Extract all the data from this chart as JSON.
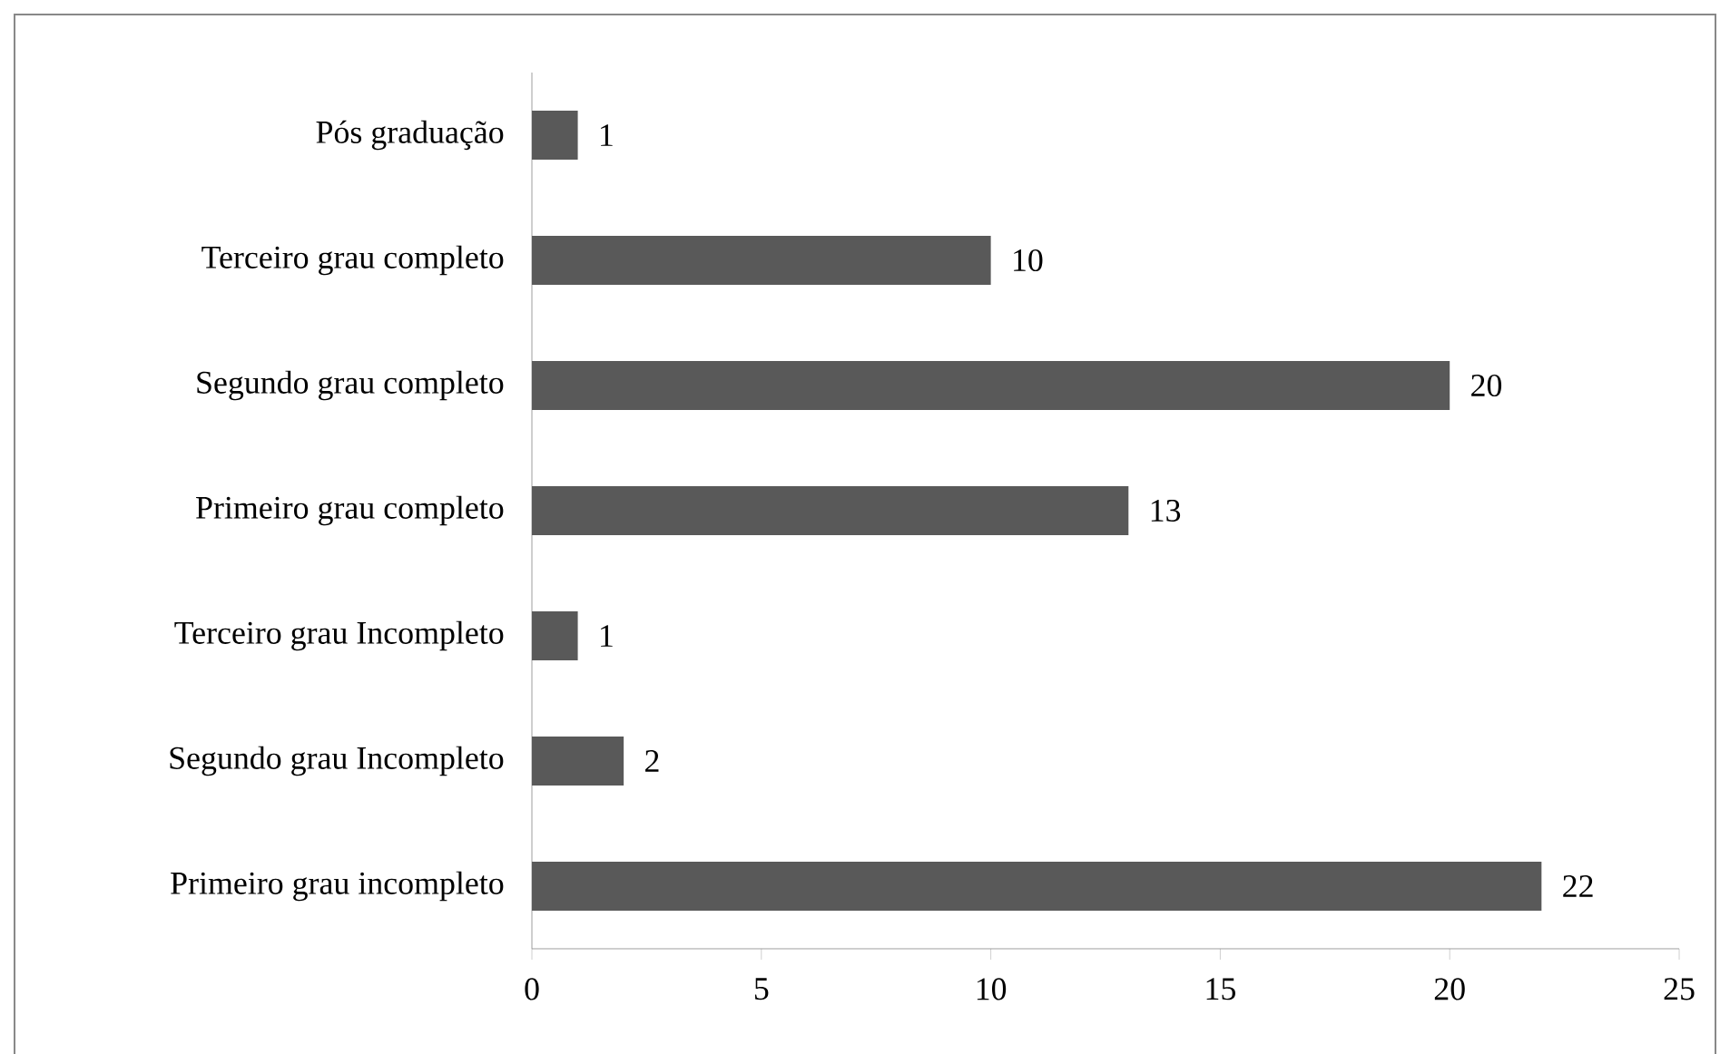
{
  "chart_data": {
    "type": "bar",
    "orientation": "horizontal",
    "categories": [
      "Pós graduação",
      "Terceiro grau completo",
      "Segundo grau completo",
      "Primeiro grau completo",
      "Terceiro grau Incompleto",
      "Segundo grau Incompleto",
      "Primeiro grau incompleto"
    ],
    "values": [
      1,
      10,
      20,
      13,
      1,
      2,
      22
    ],
    "color": "#595959",
    "xlim": [
      0,
      25
    ],
    "xticks": [
      0,
      5,
      10,
      15,
      20,
      25
    ],
    "data_labels": true,
    "grid": false
  }
}
